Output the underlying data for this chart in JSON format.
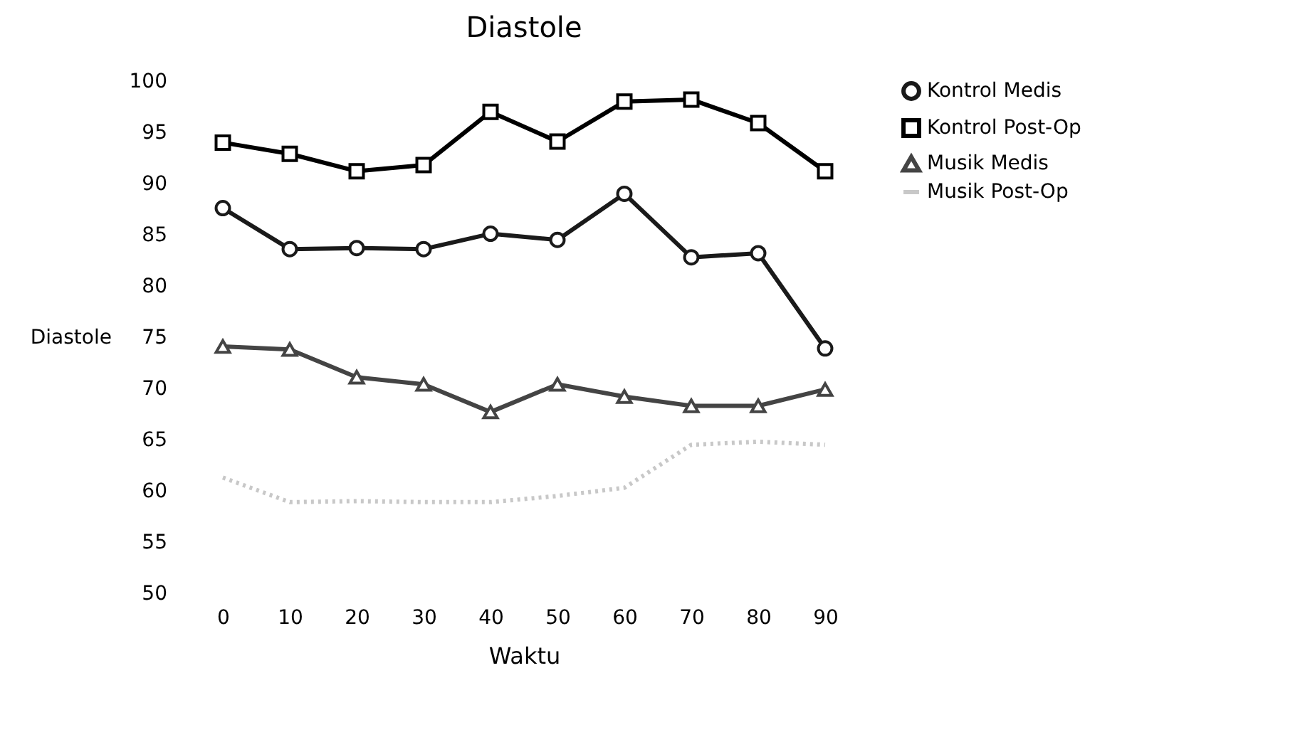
{
  "chart_data": {
    "type": "line",
    "title": "Diastole",
    "xlabel": "Waktu",
    "ylabel": "Diastole",
    "categories": [
      "0",
      "10",
      "20",
      "30",
      "40",
      "50",
      "60",
      "70",
      "80",
      "90"
    ],
    "series": [
      {
        "name": "Kontrol Medis",
        "color": "#1a1a1a",
        "marker": "circle",
        "line_style": "solid",
        "values": [
          87.6,
          83.6,
          83.7,
          83.6,
          85.1,
          84.5,
          89,
          82.8,
          83.2,
          73.9
        ]
      },
      {
        "name": "Kontrol Post-Op",
        "color": "#000000",
        "marker": "square",
        "line_style": "solid",
        "values": [
          94,
          92.9,
          91.2,
          91.8,
          97,
          94.1,
          98,
          98.2,
          95.9,
          91.2
        ]
      },
      {
        "name": "Musik Medis",
        "color": "#444444",
        "marker": "triangle",
        "line_style": "solid",
        "values": [
          74.1,
          73.8,
          71.1,
          70.4,
          67.7,
          70.4,
          69.2,
          68.3,
          68.3,
          69.9
        ]
      },
      {
        "name": "Musik Post-Op",
        "color": "#c8c8c8",
        "marker": "none",
        "line_style": "dotted",
        "values": [
          61.3,
          58.9,
          59,
          58.9,
          58.9,
          59.5,
          60.3,
          64.5,
          64.8,
          64.5
        ]
      }
    ],
    "ylim": [
      50,
      100
    ],
    "yticks": [
      50,
      55,
      60,
      65,
      70,
      75,
      80,
      85,
      90,
      95,
      100
    ],
    "grid": false,
    "legend": "right"
  }
}
